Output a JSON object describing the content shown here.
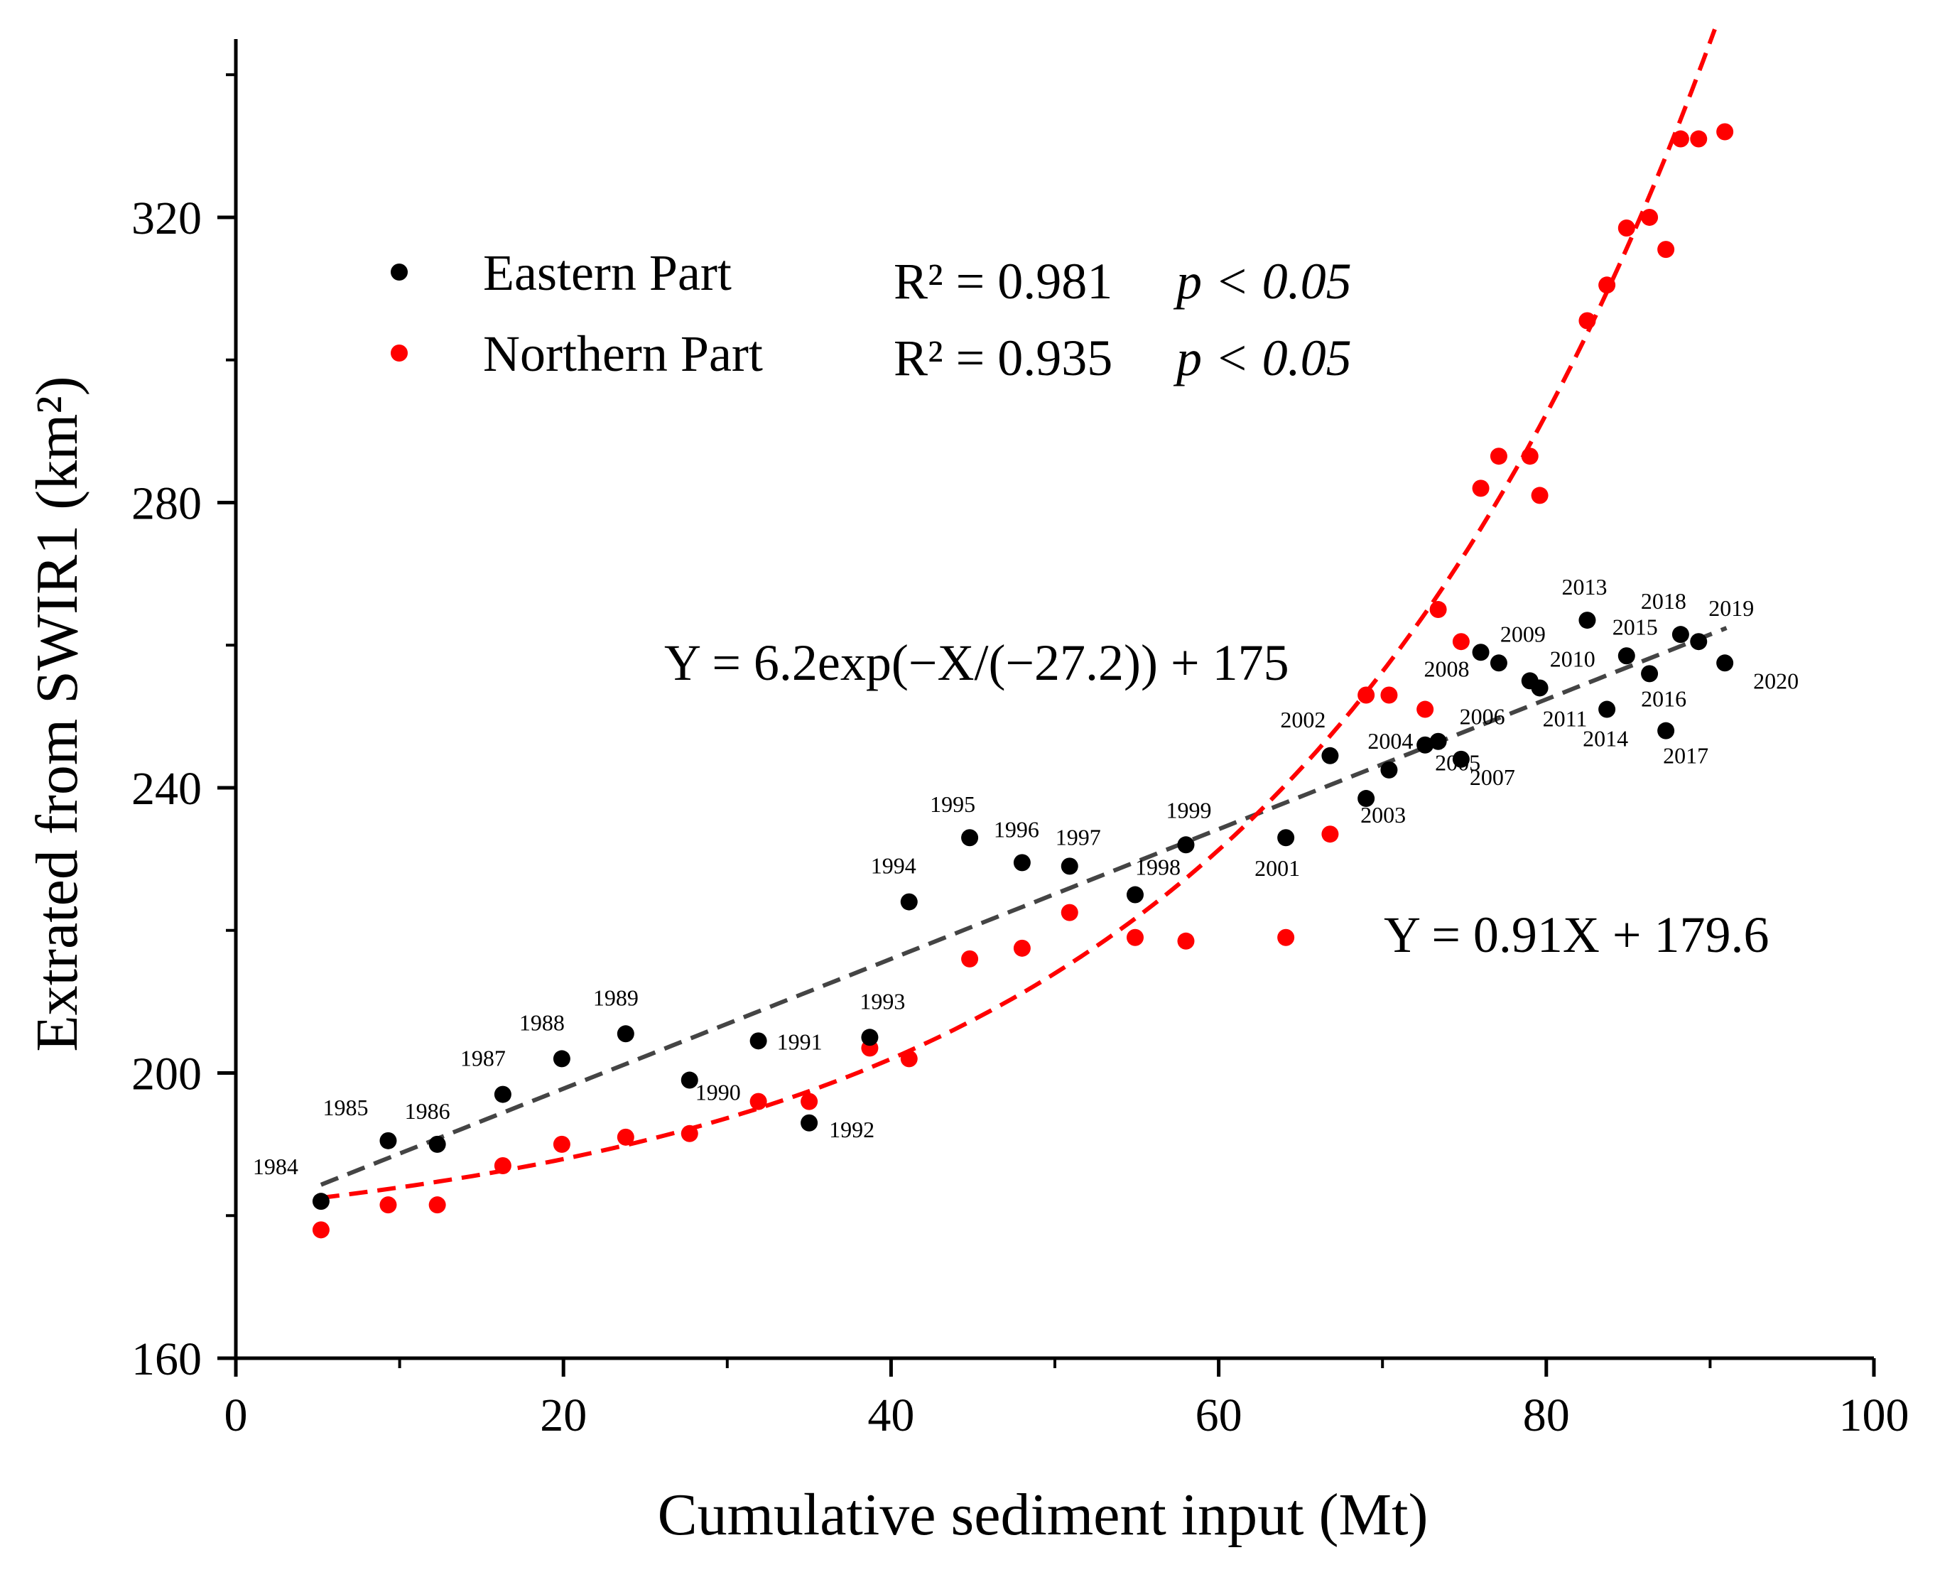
{
  "chart_data": {
    "type": "scatter",
    "xlabel": "Cumulative sediment input (Mt)",
    "ylabel": "Extrated from SWIR1 (km²)",
    "xlim": [
      0,
      100
    ],
    "ylim": [
      160,
      345
    ],
    "xticks": [
      0,
      20,
      40,
      60,
      80,
      100
    ],
    "yticks": [
      160,
      200,
      240,
      280,
      320
    ],
    "grid": false,
    "legend_position": "top-left",
    "series": [
      {
        "name": "Eastern Part",
        "color": "#000000",
        "points": [
          {
            "x": 5.2,
            "y": 182,
            "year": "1984"
          },
          {
            "x": 9.3,
            "y": 190.5,
            "year": "1985"
          },
          {
            "x": 12.3,
            "y": 190,
            "year": "1986"
          },
          {
            "x": 16.3,
            "y": 197,
            "year": "1987"
          },
          {
            "x": 19.9,
            "y": 202,
            "year": "1988"
          },
          {
            "x": 23.8,
            "y": 205.5,
            "year": "1989"
          },
          {
            "x": 27.7,
            "y": 199,
            "year": "1990"
          },
          {
            "x": 31.9,
            "y": 204.5,
            "year": "1991"
          },
          {
            "x": 35.0,
            "y": 193,
            "year": "1992"
          },
          {
            "x": 38.7,
            "y": 205,
            "year": "1993"
          },
          {
            "x": 41.1,
            "y": 224,
            "year": "1994"
          },
          {
            "x": 44.8,
            "y": 233,
            "year": "1995"
          },
          {
            "x": 48.0,
            "y": 229.5,
            "year": "1996"
          },
          {
            "x": 50.9,
            "y": 229,
            "year": "1997"
          },
          {
            "x": 54.9,
            "y": 225,
            "year": "1998"
          },
          {
            "x": 58.0,
            "y": 232,
            "year": "1999"
          },
          {
            "x": 64.1,
            "y": 233,
            "year": "2001"
          },
          {
            "x": 66.8,
            "y": 244.5,
            "year": "2002"
          },
          {
            "x": 69.0,
            "y": 238.5,
            "year": "2003"
          },
          {
            "x": 70.4,
            "y": 242.5,
            "year": "2004"
          },
          {
            "x": 72.6,
            "y": 246,
            "year": "2005"
          },
          {
            "x": 73.4,
            "y": 246.5,
            "year": "2006"
          },
          {
            "x": 74.8,
            "y": 244,
            "year": "2007"
          },
          {
            "x": 76.0,
            "y": 259,
            "year": "2008"
          },
          {
            "x": 77.1,
            "y": 257.5,
            "year": "2009"
          },
          {
            "x": 79.0,
            "y": 255,
            "year": "2010"
          },
          {
            "x": 79.6,
            "y": 254,
            "year": "2011"
          },
          {
            "x": 82.5,
            "y": 263.5,
            "year": "2013"
          },
          {
            "x": 83.7,
            "y": 251,
            "year": "2014"
          },
          {
            "x": 84.9,
            "y": 258.5,
            "year": "2015"
          },
          {
            "x": 86.3,
            "y": 256,
            "year": "2016"
          },
          {
            "x": 87.3,
            "y": 248,
            "year": "2017"
          },
          {
            "x": 88.2,
            "y": 261.5,
            "year": "2018"
          },
          {
            "x": 89.3,
            "y": 260.5,
            "year": "2019"
          },
          {
            "x": 90.9,
            "y": 257.5,
            "year": "2020"
          }
        ]
      },
      {
        "name": "Northern Part",
        "color": "#ff0000",
        "points": [
          {
            "x": 5.2,
            "y": 178
          },
          {
            "x": 9.3,
            "y": 181.5
          },
          {
            "x": 12.3,
            "y": 181.5
          },
          {
            "x": 16.3,
            "y": 187
          },
          {
            "x": 19.9,
            "y": 190
          },
          {
            "x": 23.8,
            "y": 191
          },
          {
            "x": 27.7,
            "y": 191.5
          },
          {
            "x": 31.9,
            "y": 196
          },
          {
            "x": 35.0,
            "y": 196
          },
          {
            "x": 38.7,
            "y": 203.5
          },
          {
            "x": 41.1,
            "y": 202
          },
          {
            "x": 44.8,
            "y": 216
          },
          {
            "x": 48.0,
            "y": 217.5
          },
          {
            "x": 50.9,
            "y": 222.5
          },
          {
            "x": 54.9,
            "y": 219
          },
          {
            "x": 58.0,
            "y": 218.5
          },
          {
            "x": 64.1,
            "y": 219
          },
          {
            "x": 66.8,
            "y": 233.5
          },
          {
            "x": 69.0,
            "y": 253
          },
          {
            "x": 70.4,
            "y": 253
          },
          {
            "x": 72.6,
            "y": 251
          },
          {
            "x": 73.4,
            "y": 265
          },
          {
            "x": 74.8,
            "y": 260.5
          },
          {
            "x": 76.0,
            "y": 282
          },
          {
            "x": 77.1,
            "y": 286.5
          },
          {
            "x": 79.0,
            "y": 286.5
          },
          {
            "x": 79.6,
            "y": 281
          },
          {
            "x": 82.5,
            "y": 305.5
          },
          {
            "x": 83.7,
            "y": 310.5
          },
          {
            "x": 84.9,
            "y": 318.5
          },
          {
            "x": 86.3,
            "y": 320
          },
          {
            "x": 87.3,
            "y": 315.5
          },
          {
            "x": 88.2,
            "y": 331
          },
          {
            "x": 89.3,
            "y": 331
          },
          {
            "x": 90.9,
            "y": 332
          }
        ]
      }
    ],
    "fits": [
      {
        "name": "Eastern fit",
        "form": "linear",
        "a": 0.91,
        "b": 179.6,
        "color": "#444444",
        "x_from": 5.2,
        "x_to": 91
      },
      {
        "name": "Northern fit",
        "form": "exp",
        "A": 6.2,
        "t": 27.2,
        "c": 175,
        "color": "#ff0000",
        "x_from": 5.2,
        "x_to": 91
      }
    ],
    "legend": [
      {
        "label": "Eastern Part",
        "color": "#000000",
        "stat_r2": "R² = 0.981",
        "stat_p": "p < 0.05"
      },
      {
        "label": "Northern Part",
        "color": "#ff0000",
        "stat_r2": "R² = 0.935",
        "stat_p": "p < 0.05"
      }
    ],
    "equations": {
      "northern": "Y = 6.2exp(−X/(−27.2)) + 175",
      "eastern": "Y = 0.91X + 179.6"
    }
  }
}
